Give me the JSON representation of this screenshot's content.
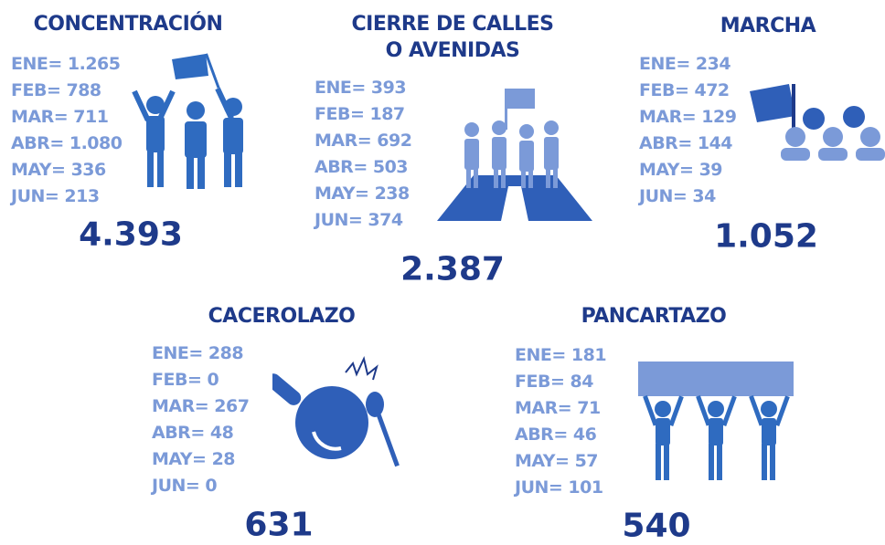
{
  "panels": [
    {
      "title": "CONCENTRACIÓN",
      "items": [
        "ENE= 1.265",
        "FEB= 788",
        "MAR= 711",
        "ABR= 1.080",
        "MAY= 336",
        "JUN= 213"
      ],
      "total": "4.393"
    },
    {
      "title": "CIERRE DE CALLES O AVENIDAS",
      "items": [
        "ENE= 393",
        "FEB= 187",
        "MAR= 692",
        "ABR= 503",
        "MAY= 238",
        "JUN= 374"
      ],
      "total": "2.387"
    },
    {
      "title": "MARCHA",
      "items": [
        "ENE= 234",
        "FEB= 472",
        "MAR= 129",
        "ABR= 144",
        "MAY= 39",
        "JUN= 34"
      ],
      "total": "1.052"
    },
    {
      "title": "CACEROLAZO",
      "items": [
        "ENE= 288",
        "FEB= 0",
        "MAR= 267",
        "ABR= 48",
        "MAY= 28",
        "JUN= 0"
      ],
      "total": "631"
    },
    {
      "title": "PANCARTAZO",
      "items": [
        "ENE= 181",
        "FEB= 84",
        "MAR= 71",
        "ABR= 46",
        "MAY= 57",
        "JUN= 101"
      ],
      "total": "540"
    }
  ]
}
